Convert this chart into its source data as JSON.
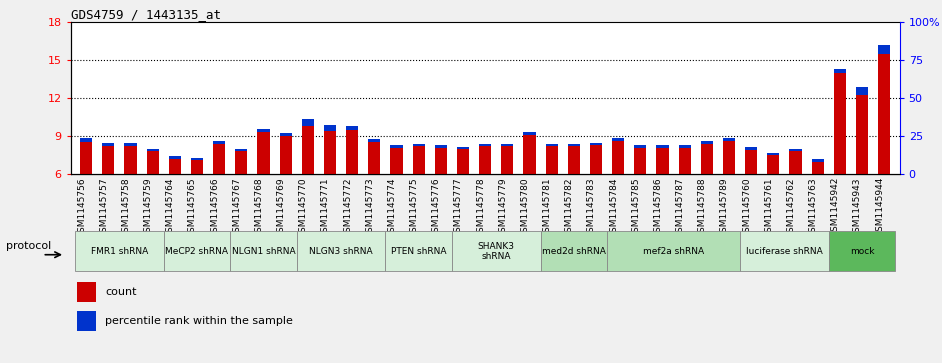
{
  "title": "GDS4759 / 1443135_at",
  "samples": [
    "GSM1145756",
    "GSM1145757",
    "GSM1145758",
    "GSM1145759",
    "GSM1145764",
    "GSM1145765",
    "GSM1145766",
    "GSM1145767",
    "GSM1145768",
    "GSM1145769",
    "GSM1145770",
    "GSM1145771",
    "GSM1145772",
    "GSM1145773",
    "GSM1145774",
    "GSM1145775",
    "GSM1145776",
    "GSM1145777",
    "GSM1145778",
    "GSM1145779",
    "GSM1145780",
    "GSM1145781",
    "GSM1145782",
    "GSM1145783",
    "GSM1145784",
    "GSM1145785",
    "GSM1145786",
    "GSM1145787",
    "GSM1145788",
    "GSM1145789",
    "GSM1145760",
    "GSM1145761",
    "GSM1145762",
    "GSM1145763",
    "GSM1145942",
    "GSM1145943",
    "GSM1145944"
  ],
  "red_values": [
    8.5,
    8.2,
    8.2,
    7.8,
    7.2,
    7.1,
    8.4,
    7.8,
    9.3,
    9.0,
    9.8,
    9.4,
    9.5,
    8.5,
    8.1,
    8.2,
    8.1,
    8.0,
    8.2,
    8.2,
    9.1,
    8.2,
    8.2,
    8.3,
    8.6,
    8.1,
    8.1,
    8.1,
    8.4,
    8.6,
    7.9,
    7.5,
    7.8,
    7.0,
    14.0,
    12.2,
    15.5
  ],
  "blue_values": [
    0.35,
    0.25,
    0.25,
    0.2,
    0.2,
    0.15,
    0.22,
    0.22,
    0.3,
    0.25,
    0.55,
    0.5,
    0.3,
    0.25,
    0.18,
    0.18,
    0.18,
    0.18,
    0.18,
    0.18,
    0.22,
    0.18,
    0.18,
    0.18,
    0.22,
    0.18,
    0.18,
    0.18,
    0.18,
    0.22,
    0.22,
    0.18,
    0.18,
    0.18,
    0.3,
    0.7,
    0.68
  ],
  "protocols": [
    {
      "label": "FMR1 shRNA",
      "start": 0,
      "end": 3,
      "color": "#d6efda"
    },
    {
      "label": "MeCP2 shRNA",
      "start": 4,
      "end": 6,
      "color": "#d6efda"
    },
    {
      "label": "NLGN1 shRNA",
      "start": 7,
      "end": 9,
      "color": "#d6efda"
    },
    {
      "label": "NLGN3 shRNA",
      "start": 10,
      "end": 13,
      "color": "#d6efda"
    },
    {
      "label": "PTEN shRNA",
      "start": 14,
      "end": 16,
      "color": "#d6efda"
    },
    {
      "label": "SHANK3\nshRNA",
      "start": 17,
      "end": 20,
      "color": "#d6efda"
    },
    {
      "label": "med2d shRNA",
      "start": 21,
      "end": 23,
      "color": "#b2dfb5"
    },
    {
      "label": "mef2a shRNA",
      "start": 24,
      "end": 29,
      "color": "#b2dfb5"
    },
    {
      "label": "luciferase shRNA",
      "start": 30,
      "end": 33,
      "color": "#d6efda"
    },
    {
      "label": "mock",
      "start": 34,
      "end": 36,
      "color": "#5cb85c"
    }
  ],
  "ylim_left": [
    6,
    18
  ],
  "yticks_left": [
    6,
    9,
    12,
    15,
    18
  ],
  "yticks_right": [
    0,
    25,
    50,
    75,
    100
  ],
  "ytick_labels_right": [
    "0",
    "25",
    "50",
    "75",
    "100%"
  ],
  "bar_width": 0.55,
  "red_color": "#cc0000",
  "blue_color": "#0033cc",
  "plot_bg_color": "#ffffff",
  "xtick_bg_color": "#cccccc",
  "fig_bg_color": "#f0f0f0",
  "hline_color": "black",
  "hline_style": "dotted",
  "hlines": [
    9,
    12,
    15
  ],
  "ybase": 6,
  "protocol_label": "protocol",
  "legend_items": [
    "count",
    "percentile rank within the sample"
  ]
}
